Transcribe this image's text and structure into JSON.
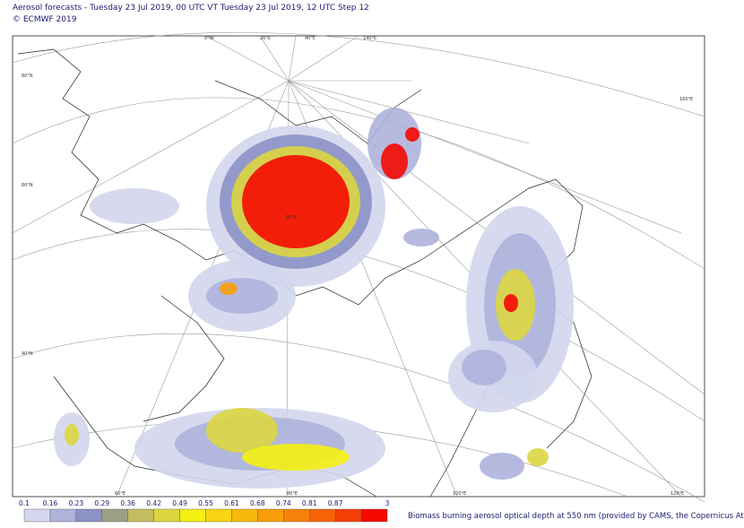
{
  "header": {
    "title": "Aerosol forecasts - Tuesday 23 Jul 2019, 00 UTC VT Tuesday 23 Jul 2019, 12 UTC Step 12",
    "copyright": "© ECMWF 2019"
  },
  "map": {
    "graticule_labels": [
      "0°W",
      "20°E",
      "40°E",
      "60°E",
      "80°E",
      "100°E",
      "120°E",
      "140°E",
      "160°E",
      "80°N",
      "60°N",
      "40°N",
      "20°N"
    ]
  },
  "colorbar": {
    "labels": [
      "0.1",
      "0.16",
      "0.23",
      "0.29",
      "0.36",
      "0.42",
      "0.49",
      "0.55",
      "0.61",
      "0.68",
      "0.74",
      "0.81",
      "0.87",
      "3"
    ],
    "colors": [
      "#d3d6ec",
      "#aeb3dc",
      "#8c92c6",
      "#9d9e86",
      "#c3bd5e",
      "#dcd640",
      "#f5ef12",
      "#f7d412",
      "#f7b90e",
      "#f79e0a",
      "#f78108",
      "#f66306",
      "#f53e04",
      "#f50a02"
    ],
    "caption": "Biomass burning aerosol optical depth at 550 nm (provided by CAMS, the Copernicus At"
  }
}
